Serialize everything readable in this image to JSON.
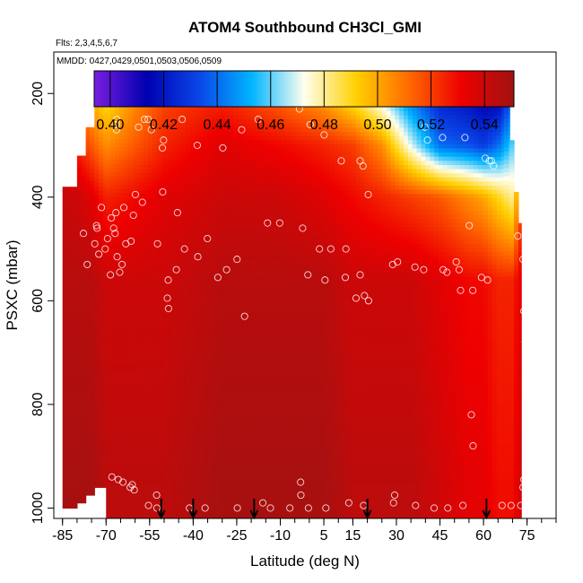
{
  "chart_data": {
    "type": "heatmap",
    "title": "ATOM4 Southbound CH3Cl_GMI",
    "subtitle_flights": "Flts: 2,3,4,5,6,7",
    "subtitle_dates": "MMDD: 0427,0429,0501,0503,0506,0509",
    "xlabel": "Latitude (deg N)",
    "ylabel": "PSXC (mbar)",
    "xlim": [
      -88,
      85
    ],
    "ylim": [
      1020,
      120
    ],
    "x_ticks": [
      "-85",
      "-70",
      "-55",
      "-40",
      "-25",
      "-10",
      "5",
      "15",
      "30",
      "45",
      "60",
      "75"
    ],
    "y_ticks": [
      "200",
      "400",
      "600",
      "800",
      "1000"
    ],
    "colorbar": {
      "ticks": [
        "0.40",
        "0.42",
        "0.44",
        "0.46",
        "0.48",
        "0.50",
        "0.52",
        "0.54"
      ],
      "range": [
        0.394,
        0.551
      ],
      "colors": [
        "#7a1ee0",
        "#0000b0",
        "#0a46e8",
        "#00b4ff",
        "#fffff0",
        "#ffd000",
        "#ff6a00",
        "#ee0000",
        "#a01212"
      ]
    },
    "field_columns": [
      {
        "x": [
          -85,
          -80
        ],
        "p": [
          380,
          1000
        ]
      },
      {
        "x": [
          -80,
          -77
        ],
        "p": [
          320,
          990
        ]
      },
      {
        "x": [
          -77,
          -74
        ],
        "p": [
          265,
          975
        ]
      },
      {
        "x": [
          -74,
          -70
        ],
        "p": [
          220,
          960
        ]
      },
      {
        "x": [
          -70,
          -60
        ],
        "p": [
          200,
          1020
        ]
      },
      {
        "x": [
          -60,
          -50
        ],
        "p": [
          170,
          1020
        ]
      },
      {
        "x": [
          -50,
          60
        ],
        "p": [
          170,
          1020
        ]
      },
      {
        "x": [
          60,
          67
        ],
        "p": [
          170,
          1020
        ]
      },
      {
        "x": [
          67,
          69
        ],
        "p": [
          200,
          1020
        ]
      },
      {
        "x": [
          69,
          70.5
        ],
        "p": [
          290,
          1020
        ]
      },
      {
        "x": [
          70.5,
          72
        ],
        "p": [
          390,
          1020
        ]
      },
      {
        "x": [
          72,
          73
        ],
        "p": [
          450,
          1020
        ]
      }
    ],
    "profiles": [
      {
        "lat": -85,
        "values": [
          0.525,
          0.535,
          0.541,
          0.545
        ]
      },
      {
        "lat": -80,
        "values": [
          0.505,
          0.525,
          0.54,
          0.545
        ]
      },
      {
        "lat": -75,
        "values": [
          0.49,
          0.515,
          0.535,
          0.545
        ]
      },
      {
        "lat": -70,
        "values": [
          0.48,
          0.505,
          0.525,
          0.54
        ]
      },
      {
        "lat": -60,
        "values": [
          0.5,
          0.515,
          0.53,
          0.54
        ]
      },
      {
        "lat": -50,
        "values": [
          0.515,
          0.525,
          0.535,
          0.54
        ]
      },
      {
        "lat": -30,
        "values": [
          0.52,
          0.535,
          0.54,
          0.545
        ]
      },
      {
        "lat": -10,
        "values": [
          0.505,
          0.53,
          0.54,
          0.545
        ]
      },
      {
        "lat": 5,
        "values": [
          0.49,
          0.525,
          0.535,
          0.545
        ]
      },
      {
        "lat": 15,
        "values": [
          0.47,
          0.52,
          0.53,
          0.54
        ]
      },
      {
        "lat": 25,
        "values": [
          0.45,
          0.505,
          0.525,
          0.54
        ]
      },
      {
        "lat": 35,
        "values": [
          0.43,
          0.47,
          0.52,
          0.54
        ]
      },
      {
        "lat": 45,
        "values": [
          0.415,
          0.44,
          0.515,
          0.535
        ]
      },
      {
        "lat": 55,
        "values": [
          0.41,
          0.435,
          0.505,
          0.53
        ]
      },
      {
        "lat": 60,
        "values": [
          0.405,
          0.43,
          0.5,
          0.53
        ]
      },
      {
        "lat": 65,
        "values": [
          0.4,
          0.44,
          0.49,
          0.525
        ]
      },
      {
        "lat": 70,
        "values": [
          0.43,
          0.46,
          0.48,
          0.525
        ]
      },
      {
        "lat": 73,
        "values": [
          0.5,
          0.51,
          0.52,
          0.535
        ]
      }
    ],
    "profile_pressures": [
      170,
      300,
      400,
      560
    ],
    "sample_points": [
      [
        -77.8,
        470
      ],
      [
        -76.5,
        530
      ],
      [
        -73.9,
        490
      ],
      [
        -73.1,
        460
      ],
      [
        -73.3,
        455
      ],
      [
        -72.5,
        510
      ],
      [
        -71.6,
        420
      ],
      [
        -70.3,
        500
      ],
      [
        -69.5,
        480
      ],
      [
        -68.5,
        550
      ],
      [
        -68.2,
        440
      ],
      [
        -67.4,
        460
      ],
      [
        -66.6,
        430
      ],
      [
        -66.9,
        470
      ],
      [
        -66.2,
        515
      ],
      [
        -65.3,
        545
      ],
      [
        -64.5,
        530
      ],
      [
        -63.2,
        490
      ],
      [
        -63.9,
        420
      ],
      [
        -61.4,
        485
      ],
      [
        -60.6,
        435
      ],
      [
        -59.9,
        395
      ],
      [
        -57.5,
        410
      ],
      [
        -52.3,
        490
      ],
      [
        -48.6,
        560
      ],
      [
        -48.9,
        595
      ],
      [
        -48.5,
        615
      ],
      [
        -45.8,
        540
      ],
      [
        -43.0,
        500
      ],
      [
        -38.4,
        515
      ],
      [
        -35.1,
        480
      ],
      [
        -31.5,
        555
      ],
      [
        -28.5,
        540
      ],
      [
        -24.9,
        520
      ],
      [
        -22.3,
        630
      ],
      [
        -14.4,
        450
      ],
      [
        -10.2,
        450
      ],
      [
        -2.3,
        460
      ],
      [
        -0.5,
        550
      ],
      [
        3.5,
        500
      ],
      [
        7.4,
        500
      ],
      [
        12.6,
        500
      ],
      [
        5.4,
        560
      ],
      [
        12.4,
        555
      ],
      [
        17.5,
        550
      ],
      [
        16.1,
        595
      ],
      [
        19.0,
        590
      ],
      [
        20.4,
        600
      ],
      [
        28.7,
        530
      ],
      [
        30.4,
        525
      ],
      [
        36.4,
        535
      ],
      [
        39.4,
        540
      ],
      [
        46.1,
        540
      ],
      [
        50.6,
        525
      ],
      [
        47.4,
        545
      ],
      [
        51.6,
        540
      ],
      [
        52.1,
        580
      ],
      [
        56.3,
        580
      ],
      [
        59.3,
        555
      ],
      [
        61.4,
        560
      ],
      [
        55.1,
        455
      ],
      [
        71.8,
        475
      ],
      [
        73.6,
        520
      ],
      [
        73.9,
        620
      ],
      [
        74.4,
        680
      ],
      [
        56.4,
        880
      ],
      [
        55.8,
        820
      ],
      [
        -50.6,
        305
      ],
      [
        -50.2,
        290
      ],
      [
        -43.8,
        250
      ],
      [
        -46.3,
        200
      ],
      [
        -47.2,
        205
      ],
      [
        -55.5,
        250
      ],
      [
        -54.4,
        270
      ],
      [
        -56.8,
        250
      ],
      [
        -56.0,
        200
      ],
      [
        -59.3,
        210
      ],
      [
        -66.3,
        250
      ],
      [
        -66.0,
        220
      ],
      [
        -66.5,
        260
      ],
      [
        -66.4,
        270
      ],
      [
        -58.8,
        265
      ],
      [
        -50.5,
        390
      ],
      [
        -45.4,
        430
      ],
      [
        -38.6,
        300
      ],
      [
        -29.8,
        305
      ],
      [
        -23.3,
        270
      ],
      [
        -17.6,
        250
      ],
      [
        -12.5,
        210
      ],
      [
        -10.4,
        210
      ],
      [
        -3.4,
        230
      ],
      [
        0.3,
        260
      ],
      [
        5.1,
        280
      ],
      [
        11.0,
        330
      ],
      [
        17.5,
        330
      ],
      [
        18.5,
        340
      ],
      [
        20.3,
        395
      ],
      [
        28.5,
        255
      ],
      [
        39.8,
        265
      ],
      [
        40.7,
        290
      ],
      [
        45.9,
        285
      ],
      [
        53.6,
        285
      ],
      [
        60.6,
        325
      ],
      [
        62.0,
        330
      ],
      [
        62.7,
        330
      ],
      [
        63.5,
        340
      ],
      [
        66.9,
        200
      ],
      [
        69.3,
        205
      ],
      [
        -61.7,
        960
      ],
      [
        -64.2,
        950
      ],
      [
        -65.8,
        945
      ],
      [
        -68.0,
        940
      ],
      [
        -61.0,
        955
      ],
      [
        -60.3,
        965
      ],
      [
        -52.6,
        975
      ],
      [
        -55.4,
        995
      ],
      [
        -52.5,
        1000
      ],
      [
        -41.3,
        1000
      ],
      [
        -35.9,
        1000
      ],
      [
        -24.8,
        1000
      ],
      [
        -13.4,
        1000
      ],
      [
        -6.7,
        1000
      ],
      [
        -0.3,
        1000
      ],
      [
        5.7,
        1000
      ],
      [
        13.6,
        990
      ],
      [
        18.7,
        995
      ],
      [
        29.4,
        975
      ],
      [
        29.0,
        990
      ],
      [
        36.6,
        995
      ],
      [
        43.0,
        1000
      ],
      [
        47.7,
        1000
      ],
      [
        52.9,
        995
      ],
      [
        66.4,
        995
      ],
      [
        69.5,
        995
      ],
      [
        72.8,
        995
      ],
      [
        73.6,
        960
      ],
      [
        73.9,
        945
      ],
      [
        -3.0,
        950
      ],
      [
        -2.9,
        975
      ],
      [
        -16.0,
        990
      ]
    ],
    "arrows": [
      -51,
      -40,
      -19,
      20,
      61
    ]
  }
}
